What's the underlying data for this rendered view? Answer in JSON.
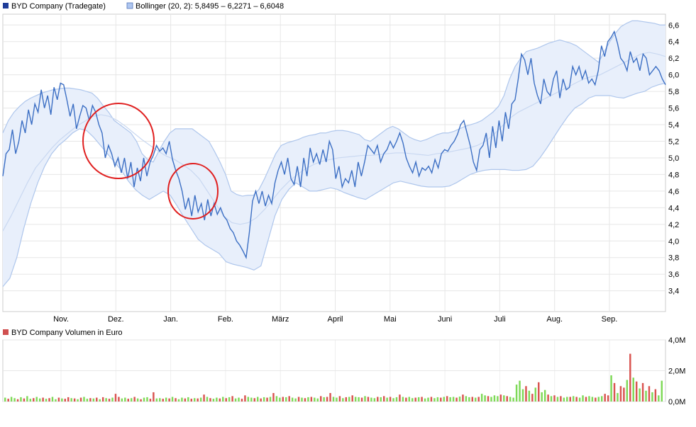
{
  "chart_data": [
    {
      "type": "line",
      "legend": [
        {
          "label": "BYD Company (Tradegate)",
          "color": "#1f3d99"
        },
        {
          "label": "Bollinger (20, 2): 5,8495 – 6,2271 – 6,6048",
          "color": "#aec6f0"
        }
      ],
      "x_ticks": [
        "Nov.",
        "Dez.",
        "Jan.",
        "Feb.",
        "März",
        "April",
        "Mai",
        "Juni",
        "Juli",
        "Aug.",
        "Sep."
      ],
      "y_ticks": [
        "3,4",
        "3,6",
        "3,8",
        "4,0",
        "4,2",
        "4,4",
        "4,6",
        "4,8",
        "5,0",
        "5,2",
        "5,4",
        "5,6",
        "5,8",
        "6,0",
        "6,2",
        "6,4",
        "6,6"
      ],
      "ylim": [
        3.15,
        6.73
      ],
      "series": [
        {
          "name": "BYD Company (Tradegate)",
          "values": [
            4.78,
            5.05,
            5.1,
            5.34,
            5.05,
            5.2,
            5.45,
            5.3,
            5.58,
            5.4,
            5.65,
            5.55,
            5.82,
            5.6,
            5.75,
            5.52,
            5.85,
            5.7,
            5.9,
            5.88,
            5.7,
            5.5,
            5.65,
            5.35,
            5.5,
            5.63,
            5.6,
            5.45,
            5.63,
            5.55,
            5.4,
            5.3,
            5.0,
            5.15,
            5.05,
            4.9,
            5.0,
            4.82,
            5.0,
            4.75,
            4.95,
            4.65,
            4.88,
            4.72,
            5.0,
            4.78,
            4.95,
            5.03,
            5.15,
            5.08,
            5.12,
            5.05,
            5.2,
            4.98,
            4.85,
            4.75,
            4.6,
            4.38,
            4.52,
            4.3,
            4.55,
            4.35,
            4.45,
            4.25,
            4.5,
            4.3,
            4.45,
            4.32,
            4.4,
            4.3,
            4.25,
            4.15,
            4.1,
            4.0,
            3.95,
            3.88,
            3.8,
            4.1,
            4.48,
            4.6,
            4.45,
            4.6,
            4.42,
            4.55,
            4.45,
            4.7,
            4.85,
            4.95,
            4.8,
            5.0,
            4.75,
            4.68,
            4.9,
            4.65,
            5.0,
            4.78,
            5.12,
            4.95,
            5.05,
            4.92,
            5.1,
            4.95,
            5.2,
            5.1,
            4.75,
            4.9,
            4.65,
            4.75,
            4.7,
            4.85,
            4.65,
            4.95,
            4.78,
            4.95,
            5.15,
            5.1,
            5.05,
            5.15,
            4.95,
            5.05,
            5.1,
            5.2,
            5.12,
            5.2,
            5.3,
            5.18,
            5.0,
            4.9,
            4.82,
            4.95,
            4.78,
            4.88,
            4.85,
            4.9,
            4.82,
            4.98,
            4.88,
            5.05,
            5.1,
            5.08,
            5.15,
            5.2,
            5.28,
            5.4,
            5.45,
            5.3,
            5.15,
            4.95,
            4.85,
            5.1,
            5.15,
            5.3,
            5.0,
            5.38,
            5.12,
            5.45,
            5.2,
            5.55,
            5.35,
            5.65,
            5.7,
            5.95,
            6.25,
            6.18,
            6.0,
            6.2,
            5.9,
            5.75,
            5.65,
            5.95,
            5.8,
            5.75,
            5.95,
            6.05,
            5.72,
            5.95,
            5.82,
            5.85,
            6.1,
            6.0,
            6.1,
            5.95,
            6.05,
            5.9,
            5.95,
            5.88,
            6.05,
            6.35,
            6.22,
            6.4,
            6.45,
            6.52,
            6.38,
            6.2,
            6.15,
            6.05,
            6.28,
            6.15,
            6.2,
            6.05,
            6.25,
            6.2,
            6.0,
            6.05,
            6.1,
            6.05,
            5.95,
            5.88
          ],
          "color": "#3c6fc4"
        },
        {
          "name": "Bollinger upper",
          "values": [
            5.3,
            5.45,
            5.55,
            5.62,
            5.68,
            5.72,
            5.75,
            5.78,
            5.8,
            5.82,
            5.83,
            5.84,
            5.84,
            5.83,
            5.82,
            5.8,
            5.78,
            5.72,
            5.63,
            5.55,
            5.45,
            5.4,
            5.35,
            5.3,
            5.2,
            5.05,
            4.98,
            4.95,
            5.08,
            5.2,
            5.3,
            5.35,
            5.35,
            5.35,
            5.35,
            5.3,
            5.25,
            5.2,
            5.08,
            4.95,
            4.8,
            4.6,
            4.56,
            4.54,
            4.55,
            4.55,
            4.62,
            4.75,
            4.9,
            5.05,
            5.15,
            5.18,
            5.2,
            5.22,
            5.25,
            5.27,
            5.28,
            5.3,
            5.3,
            5.32,
            5.33,
            5.33,
            5.32,
            5.3,
            5.28,
            5.22,
            5.2,
            5.25,
            5.3,
            5.35,
            5.38,
            5.35,
            5.3,
            5.25,
            5.22,
            5.2,
            5.22,
            5.25,
            5.28,
            5.3,
            5.3,
            5.32,
            5.35,
            5.38,
            5.4,
            5.42,
            5.45,
            5.5,
            5.55,
            5.62,
            5.75,
            5.95,
            6.1,
            6.2,
            6.28,
            6.3,
            6.32,
            6.35,
            6.38,
            6.4,
            6.42,
            6.4,
            6.38,
            6.35,
            6.3,
            6.25,
            6.2,
            6.15,
            6.28,
            6.4,
            6.5,
            6.58,
            6.62,
            6.65,
            6.65,
            6.64,
            6.63,
            6.62,
            6.6,
            6.6
          ],
          "color": "#b6cbec"
        },
        {
          "name": "Bollinger middle",
          "values": [
            4.12,
            4.3,
            4.5,
            4.7,
            4.88,
            5.0,
            5.12,
            5.22,
            5.3,
            5.38,
            5.44,
            5.5,
            5.52,
            5.5,
            5.45,
            5.38,
            5.3,
            5.22,
            5.15,
            5.08,
            5.02,
            4.98,
            4.92,
            4.85,
            4.75,
            4.6,
            4.45,
            4.3,
            4.22,
            4.2,
            4.22,
            4.28,
            4.38,
            4.5,
            4.62,
            4.72,
            4.8,
            4.87,
            4.92,
            4.96,
            4.98,
            5.0,
            5.01,
            5.02,
            5.03,
            5.03,
            5.04,
            5.05,
            5.06,
            5.06,
            5.05,
            5.04,
            5.03,
            5.05,
            5.06,
            5.08,
            5.1,
            5.12,
            5.15,
            5.2,
            5.28,
            5.38,
            5.48,
            5.55,
            5.6,
            5.65,
            5.7,
            5.75,
            5.8,
            5.85,
            5.9,
            5.95,
            5.98,
            6.0,
            6.05,
            6.1,
            6.15,
            6.2,
            6.25,
            6.27,
            6.25,
            6.22
          ],
          "color": "#d3def3"
        },
        {
          "name": "Bollinger lower",
          "values": [
            3.45,
            3.55,
            3.8,
            4.15,
            4.45,
            4.7,
            4.9,
            5.05,
            5.15,
            5.22,
            5.3,
            5.35,
            5.33,
            5.25,
            5.15,
            5.05,
            4.95,
            4.85,
            4.72,
            4.62,
            4.55,
            4.5,
            4.55,
            4.6,
            4.55,
            4.42,
            4.28,
            4.15,
            4.02,
            3.95,
            3.9,
            3.85,
            3.75,
            3.72,
            3.7,
            3.68,
            3.65,
            3.7,
            4.0,
            4.3,
            4.5,
            4.62,
            4.7,
            4.65,
            4.6,
            4.6,
            4.62,
            4.64,
            4.62,
            4.58,
            4.55,
            4.52,
            4.5,
            4.55,
            4.6,
            4.65,
            4.7,
            4.72,
            4.7,
            4.68,
            4.66,
            4.65,
            4.65,
            4.65,
            4.66,
            4.7,
            4.75,
            4.8,
            4.83,
            4.85,
            4.86,
            4.86,
            4.86,
            4.85,
            4.85,
            4.86,
            4.9,
            5.0,
            5.12,
            5.25,
            5.38,
            5.5,
            5.6,
            5.65,
            5.72,
            5.75,
            5.75,
            5.75,
            5.73,
            5.72,
            5.75,
            5.78,
            5.8,
            5.85,
            5.88,
            5.9
          ],
          "color": "#b6cbec"
        }
      ],
      "grid": true,
      "annotations": [
        {
          "shape": "circle",
          "color": "#e02020",
          "period": "Dez."
        },
        {
          "shape": "circle",
          "color": "#e02020",
          "period": "Jan."
        }
      ]
    },
    {
      "type": "bar",
      "legend": [
        {
          "label": "BYD Company Volumen in Euro",
          "color": "#d05050"
        }
      ],
      "y_ticks": [
        "0,0M",
        "2,0M",
        "4,0M"
      ],
      "ylim": [
        0,
        4.0
      ],
      "up_color": "#7ed957",
      "down_color": "#d9534f",
      "series": [
        {
          "name": "BYD Company Volumen in Euro",
          "values": [
            0.25,
            0.18,
            0.3,
            0.22,
            0.15,
            0.28,
            0.2,
            0.35,
            0.18,
            0.22,
            0.3,
            0.2,
            0.25,
            0.18,
            0.22,
            0.3,
            0.15,
            0.25,
            0.2,
            0.18,
            0.28,
            0.22,
            0.2,
            0.15,
            0.25,
            0.3,
            0.18,
            0.22,
            0.2,
            0.25,
            0.15,
            0.28,
            0.22,
            0.18,
            0.25,
            0.5,
            0.3,
            0.2,
            0.25,
            0.18,
            0.22,
            0.3,
            0.2,
            0.15,
            0.25,
            0.28,
            0.18,
            0.6,
            0.2,
            0.22,
            0.18,
            0.25,
            0.2,
            0.3,
            0.22,
            0.15,
            0.25,
            0.2,
            0.28,
            0.18,
            0.22,
            0.2,
            0.25,
            0.45,
            0.3,
            0.22,
            0.18,
            0.25,
            0.2,
            0.3,
            0.22,
            0.28,
            0.35,
            0.2,
            0.25,
            0.18,
            0.4,
            0.3,
            0.25,
            0.22,
            0.3,
            0.2,
            0.28,
            0.25,
            0.3,
            0.55,
            0.35,
            0.25,
            0.3,
            0.28,
            0.35,
            0.25,
            0.2,
            0.3,
            0.25,
            0.22,
            0.28,
            0.3,
            0.25,
            0.2,
            0.35,
            0.28,
            0.3,
            0.55,
            0.3,
            0.25,
            0.35,
            0.22,
            0.28,
            0.3,
            0.4,
            0.3,
            0.28,
            0.25,
            0.35,
            0.3,
            0.25,
            0.22,
            0.3,
            0.28,
            0.35,
            0.25,
            0.3,
            0.22,
            0.28,
            0.45,
            0.3,
            0.25,
            0.3,
            0.22,
            0.25,
            0.28,
            0.3,
            0.2,
            0.25,
            0.3,
            0.22,
            0.28,
            0.25,
            0.3,
            0.35,
            0.28,
            0.3,
            0.25,
            0.32,
            0.45,
            0.35,
            0.28,
            0.3,
            0.25,
            0.3,
            0.5,
            0.4,
            0.35,
            0.3,
            0.4,
            0.35,
            0.45,
            0.4,
            0.35,
            0.3,
            0.25,
            1.1,
            1.35,
            0.8,
            1.0,
            0.7,
            0.5,
            0.9,
            1.25,
            0.6,
            0.75,
            0.45,
            0.35,
            0.4,
            0.3,
            0.35,
            0.25,
            0.3,
            0.3,
            0.35,
            0.3,
            0.25,
            0.4,
            0.3,
            0.35,
            0.3,
            0.25,
            0.3,
            0.35,
            0.5,
            0.4,
            1.7,
            1.2,
            0.55,
            1.0,
            0.9,
            1.4,
            3.1,
            1.55,
            1.3,
            0.85,
            1.2,
            0.7,
            1.0,
            0.6,
            0.8,
            0.4,
            1.35
          ],
          "directions": [
            "u",
            "d",
            "u",
            "u",
            "d",
            "u",
            "d",
            "u",
            "u",
            "d",
            "u",
            "u",
            "d",
            "u",
            "d",
            "u",
            "u",
            "d",
            "u",
            "d",
            "d",
            "u",
            "d",
            "u",
            "d",
            "u",
            "u",
            "d",
            "u",
            "d",
            "u",
            "d",
            "u",
            "d",
            "u",
            "d",
            "d",
            "u",
            "u",
            "d",
            "u",
            "d",
            "u",
            "d",
            "u",
            "u",
            "d",
            "d",
            "u",
            "u",
            "d",
            "u",
            "d",
            "u",
            "d",
            "u",
            "u",
            "d",
            "u",
            "d",
            "u",
            "d",
            "u",
            "d",
            "u",
            "d",
            "u",
            "u",
            "d",
            "u",
            "d",
            "u",
            "d",
            "u",
            "u",
            "d",
            "d",
            "u",
            "u",
            "d",
            "u",
            "d",
            "u",
            "d",
            "u",
            "d",
            "u",
            "u",
            "d",
            "u",
            "d",
            "u",
            "u",
            "d",
            "u",
            "d",
            "u",
            "d",
            "u",
            "u",
            "d",
            "u",
            "d",
            "d",
            "u",
            "u",
            "d",
            "u",
            "d",
            "u",
            "d",
            "u",
            "u",
            "d",
            "u",
            "d",
            "u",
            "u",
            "d",
            "u",
            "d",
            "u",
            "d",
            "u",
            "u",
            "d",
            "u",
            "d",
            "u",
            "u",
            "d",
            "u",
            "d",
            "u",
            "u",
            "d",
            "u",
            "u",
            "d",
            "u",
            "d",
            "u",
            "u",
            "d",
            "u",
            "d",
            "u",
            "u",
            "d",
            "u",
            "d",
            "u",
            "u",
            "d",
            "u",
            "u",
            "u",
            "d",
            "u",
            "d",
            "u",
            "u",
            "u",
            "u",
            "u",
            "d",
            "u",
            "d",
            "u",
            "d",
            "u",
            "u",
            "d",
            "u",
            "d",
            "u",
            "d",
            "u",
            "u",
            "d",
            "u",
            "d",
            "u",
            "u",
            "d",
            "u",
            "u",
            "d",
            "u",
            "u",
            "d",
            "d",
            "u",
            "d",
            "u",
            "d",
            "d",
            "u",
            "d",
            "u",
            "d",
            "u",
            "d",
            "u",
            "d",
            "u",
            "d"
          ]
        }
      ],
      "grid": true
    }
  ]
}
